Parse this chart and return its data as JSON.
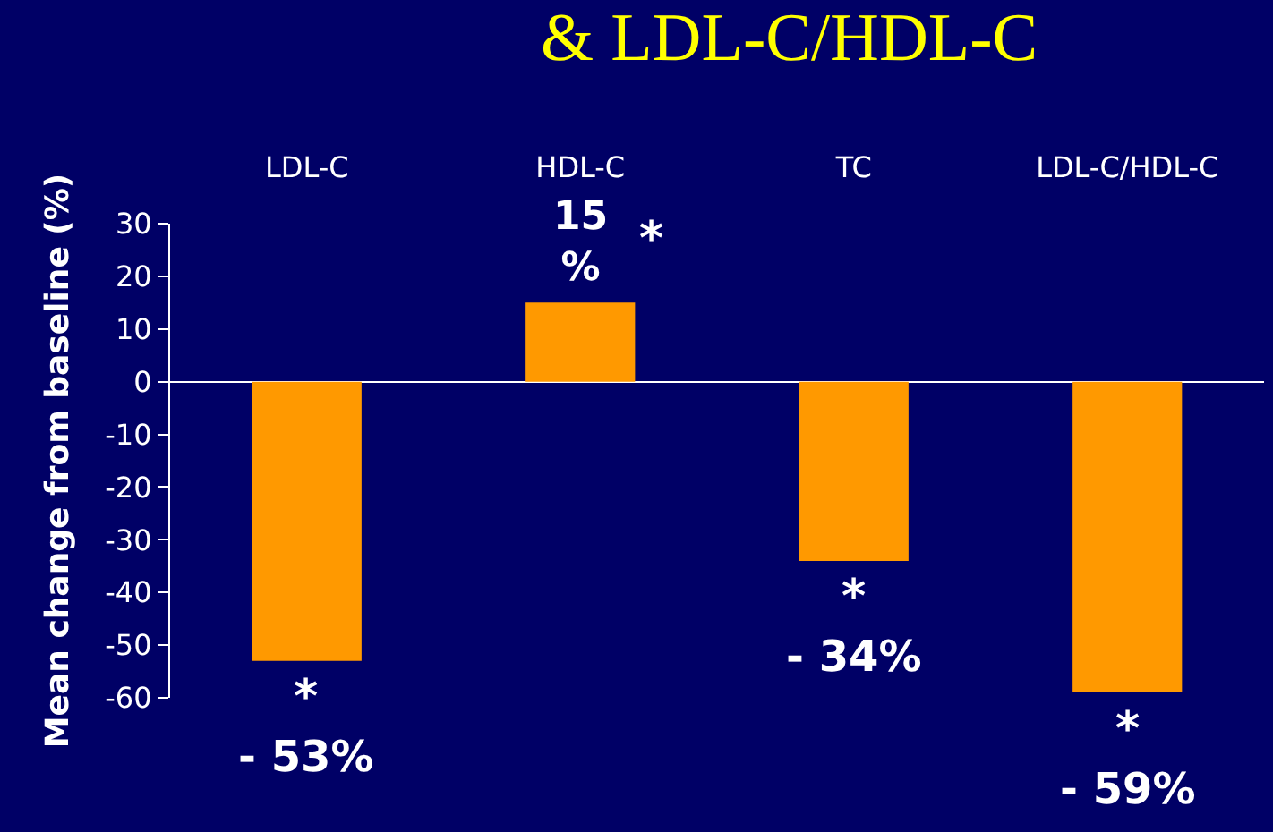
{
  "chart_data": {
    "type": "bar",
    "title": "& LDL-C/HDL-C",
    "ylabel": "Mean change from baseline (%)",
    "categories": [
      "LDL-C",
      "HDL-C",
      "TC",
      "LDL-C/HDL-C"
    ],
    "values": [
      -53,
      15,
      -34,
      -59
    ],
    "color": "#ff9900",
    "value_labels": [
      "- 53%",
      "15 %",
      "- 34%",
      "- 59%"
    ],
    "annotations": [
      {
        "text": "*",
        "x": "LDL-C",
        "y": -53
      },
      {
        "text": "*",
        "x": "HDL-C",
        "y": 15
      },
      {
        "text": "*",
        "x": "TC",
        "y": -34
      },
      {
        "text": "*",
        "x": "LDL-C/HDL-C",
        "y": -59
      }
    ],
    "ylim": [
      -60,
      30
    ],
    "yticks": [
      -60,
      -50,
      -40,
      -30,
      -20,
      -10,
      0,
      10,
      20,
      30
    ],
    "legend": false
  }
}
